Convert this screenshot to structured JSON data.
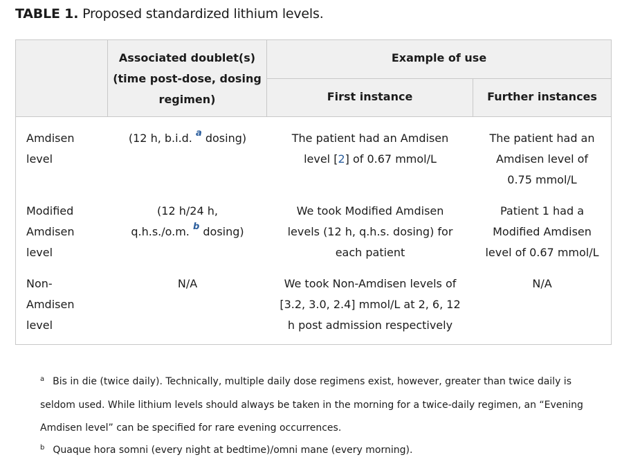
{
  "caption": {
    "label": "TABLE 1.",
    "text": "Proposed standardized lithium levels."
  },
  "header": {
    "doublet": [
      "Associated doublet(s)",
      "(time post-dose, dosing",
      "regimen)"
    ],
    "example": "Example of use",
    "first": "First instance",
    "further": "Further instances"
  },
  "rows": [
    {
      "name": [
        "Amdisen",
        "level"
      ],
      "doublet_pre": "(12 h, b.i.d.",
      "doublet_sup": "a",
      "doublet_post": "dosing)",
      "first_a": "The patient had an Amdisen",
      "first_b_pre": "level [",
      "first_ref": "2",
      "first_b_post": "] of 0.67 mmol/L",
      "further": [
        "The patient had an",
        "Amdisen level of",
        "0.75 mmol/L"
      ]
    },
    {
      "name": [
        "Modified",
        "Amdisen",
        "level"
      ],
      "doublet_l1": "(12 h/24 h,",
      "doublet_pre": "q.h.s./o.m.",
      "doublet_sup": "b",
      "doublet_post": "dosing)",
      "first": [
        "We took Modified Amdisen",
        "levels (12 h, q.h.s. dosing) for",
        "each patient"
      ],
      "further": [
        "Patient 1 had a",
        "Modified Amdisen",
        "level of 0.67 mmol/L"
      ]
    },
    {
      "name": [
        "Non-",
        "Amdisen",
        "level"
      ],
      "doublet": "N/A",
      "first": [
        "We took Non-Amdisen levels of",
        "[3.2, 3.0, 2.4] mmol/L at 2, 6, 12",
        "h post admission respectively"
      ],
      "further": "N/A"
    }
  ],
  "footnotes": [
    {
      "mark": "a",
      "lines": [
        "Bis in die (twice daily). Technically, multiple daily dose regimens exist, however, greater than twice daily is",
        "seldom used. While lithium levels should always be taken in the morning for a twice-daily regimen, an “Evening",
        "Amdisen level” can be specified for rare evening occurrences."
      ]
    },
    {
      "mark": "b",
      "lines": [
        "Quaque hora somni (every night at bedtime)/omni mane (every morning)."
      ]
    }
  ]
}
